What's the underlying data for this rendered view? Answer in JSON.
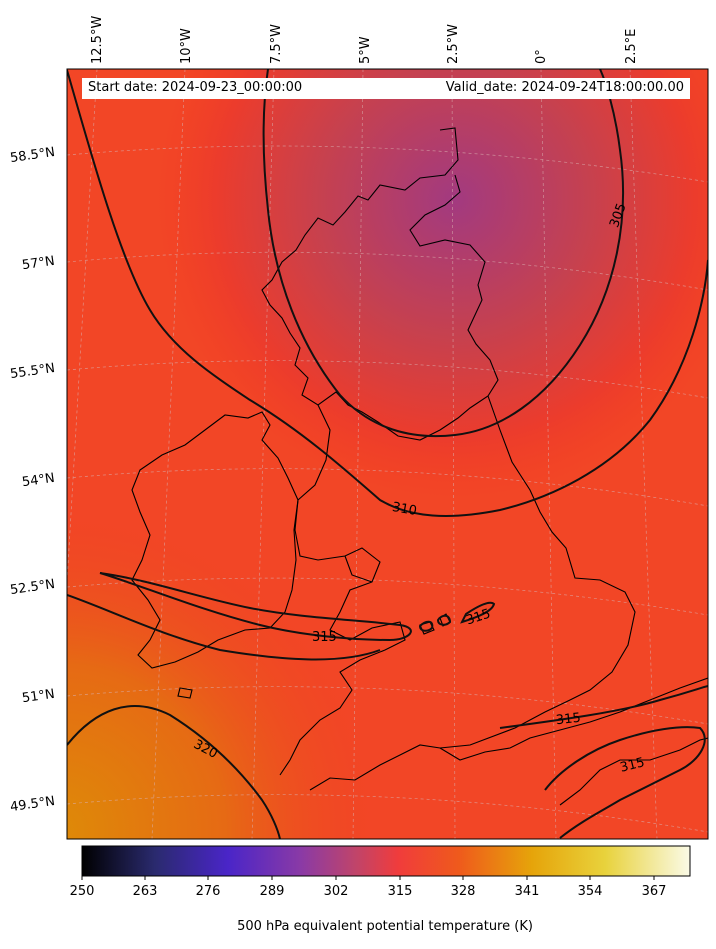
{
  "map": {
    "start_date": "Start date: 2024-09-23_00:00:00",
    "valid_date": "Valid_date: 2024-09-24T18:00:00.00",
    "lon_labels": [
      "12.5°W",
      "10°W",
      "7.5°W",
      "5°W",
      "2.5°W",
      "0°",
      "2.5°E"
    ],
    "lat_labels": [
      "58.5°N",
      "57°N",
      "55.5°N",
      "54°N",
      "52.5°N",
      "51°N",
      "49.5°N"
    ],
    "contour_labels": [
      "305",
      "310",
      "315",
      "315",
      "315",
      "320",
      "315"
    ],
    "colorbar": {
      "label": "500 hPa equivalent potential temperature (K)",
      "ticks": [
        "250",
        "263",
        "276",
        "289",
        "302",
        "315",
        "328",
        "341",
        "354",
        "367"
      ],
      "colormap": "CMRmap",
      "colors": [
        "#000000",
        "#2a2a6e",
        "#4a25c8",
        "#8a3aa6",
        "#c0446a",
        "#f03c3c",
        "#ef5a1c",
        "#e6a40a",
        "#e8d23c",
        "#fafae6"
      ]
    },
    "field_colors": {
      "low": "#9a3d7a",
      "mid": "#f03c2c",
      "high": "#e27a0a"
    }
  }
}
